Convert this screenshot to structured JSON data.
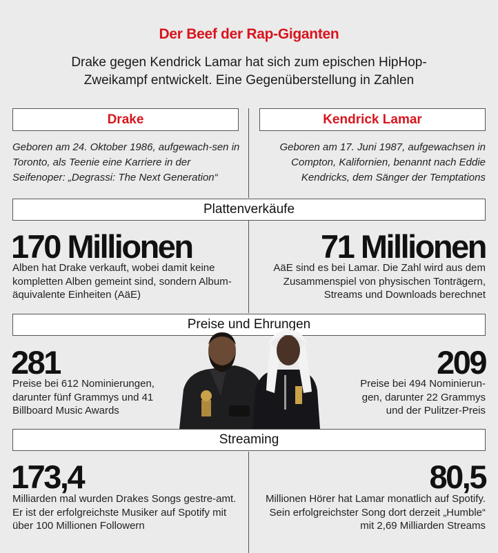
{
  "header": {
    "title": "Der Beef der Rap-Giganten",
    "subtitle": "Drake gegen Kendrick Lamar hat sich zum epischen HipHop-Zweikampf entwickelt. Eine Gegenüberstellung in Zahlen"
  },
  "left": {
    "name": "Drake",
    "bio": "Geboren am 24. Oktober 1986, aufgewach-sen in Toronto, als Teenie eine Karriere in der Seifenoper: „Degrassi: The Next Generation“",
    "sales_value": "170 Millionen",
    "sales_desc": "Alben hat Drake verkauft, wobei damit keine kompletten Alben gemeint sind, sondern Album-äquivalente Einheiten (AäE)",
    "awards_value": "281",
    "awards_desc": "Preise bei 612 Nominierungen, darunter fünf Grammys und 41 Billboard Music Awards",
    "streams_value": "173,4",
    "streams_desc": "Milliarden mal wurden Drakes Songs gestre-amt. Er ist der erfolgreichste Musiker auf Spotify mit über 100 Millionen Followern"
  },
  "right": {
    "name": "Kendrick Lamar",
    "bio": "Geboren am 17. Juni 1987, aufgewachsen in Compton, Kalifornien, benannt nach Eddie Kendricks, dem Sänger der Temptations",
    "sales_value": "71 Millionen",
    "sales_desc": "AäE sind es bei Lamar. Die Zahl wird aus dem Zusammenspiel von physischen Tonträgern, Streams und Downloads berechnet",
    "awards_value": "209",
    "awards_desc": "Preise bei 494 Nominierun-gen, darunter 22 Grammys und der Pulitzer-Preis",
    "streams_value": "80,5",
    "streams_desc": "Millionen Hörer hat Lamar monatlich auf Spotify. Sein erfolgreichster Song dort derzeit „Humble“ mit 2,69 Milliarden Streams"
  },
  "sections": {
    "sales": "Plattenverkäufe",
    "awards": "Preise und Ehrungen",
    "streaming": "Streaming"
  },
  "colors": {
    "accent": "#d8151d",
    "background": "#ebebeb"
  }
}
